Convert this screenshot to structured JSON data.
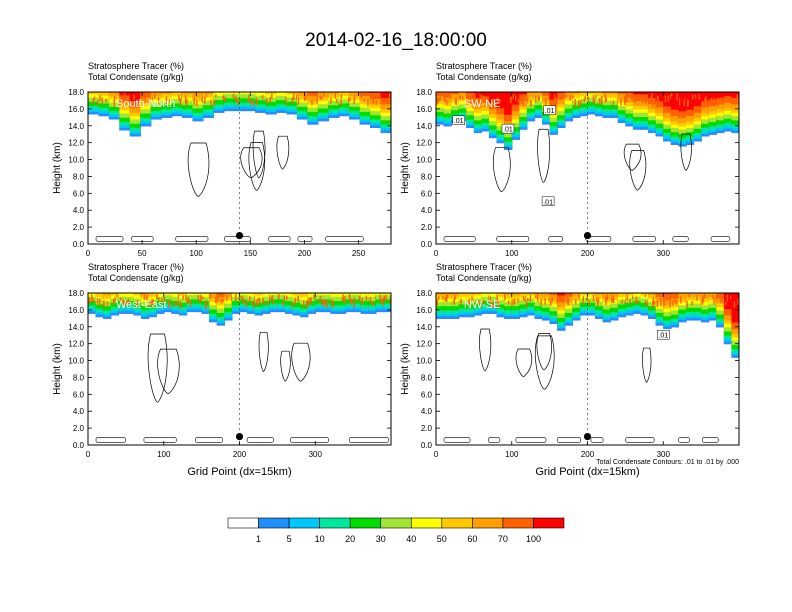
{
  "title": "2014-02-16_18:00:00",
  "panel_title_line1": "Stratosphere Tracer   (%)",
  "panel_title_line2": "Total Condensate   (g/kg)",
  "ylabel": "Height (km)",
  "xlabel": "Grid Point (dx=15km)",
  "contour_note": "Total Condensate Contours: .01 to .01 by .000",
  "contour_label": ".01",
  "colorbar": {
    "levels": [
      "1",
      "5",
      "10",
      "20",
      "30",
      "40",
      "50",
      "60",
      "70",
      "100"
    ],
    "colors": [
      "#ffffff",
      "#1e90ff",
      "#00c8ff",
      "#00e8a0",
      "#00dd00",
      "#a0e632",
      "#ffff00",
      "#ffc800",
      "#ffa000",
      "#ff6000",
      "#ff0000"
    ]
  },
  "chart_data": [
    {
      "type": "heatmap",
      "name": "South-North",
      "panel_label": "South-North",
      "xlim": [
        0,
        280
      ],
      "xticks": [
        "0",
        "50",
        "100",
        "150",
        "200",
        "250"
      ],
      "xtick_values": [
        0,
        50,
        100,
        150,
        200,
        250
      ],
      "ylim": [
        0,
        18
      ],
      "yticks": [
        "0.0",
        "2.0",
        "4.0",
        "6.0",
        "8.0",
        "10.0",
        "12.0",
        "14.0",
        "16.0",
        "18.0"
      ],
      "tracer_top_km": [
        15.4,
        15.2,
        14.8,
        13.5,
        12.8,
        14.0,
        14.8,
        15.0,
        15.2,
        15.0,
        14.6,
        15.0,
        15.6,
        15.8,
        15.8,
        15.8,
        15.6,
        15.4,
        15.6,
        15.4,
        14.8,
        14.2,
        14.6,
        15.0,
        15.2,
        14.8,
        14.2,
        13.8,
        13.2
      ],
      "marker_x": 140,
      "marker_km": 1.0,
      "show_xlabel": false,
      "show_note": false
    },
    {
      "type": "heatmap",
      "name": "SW-NE",
      "panel_label": "SW-NE",
      "xlim": [
        0,
        400
      ],
      "xticks": [
        "0",
        "100",
        "200",
        "300"
      ],
      "xtick_values": [
        0,
        100,
        200,
        300
      ],
      "ylim": [
        0,
        18
      ],
      "yticks": [
        "0.0",
        "2.0",
        "4.0",
        "6.0",
        "8.0",
        "10.0",
        "12.0",
        "14.0",
        "16.0",
        "18.0"
      ],
      "tracer_top_km": [
        14.2,
        14.0,
        14.4,
        14.6,
        13.8,
        13.2,
        13.4,
        12.6,
        12.0,
        11.2,
        12.4,
        13.6,
        14.6,
        15.0,
        14.2,
        13.0,
        13.8,
        14.6,
        15.0,
        15.2,
        15.4,
        15.2,
        15.0,
        15.0,
        14.4,
        14.0,
        13.6,
        13.6,
        13.2,
        12.8,
        12.2,
        11.8,
        11.6,
        11.8,
        12.2,
        12.8,
        13.0,
        13.2,
        13.4,
        13.2
      ],
      "marker_x": 200,
      "marker_km": 1.0,
      "show_xlabel": false,
      "show_note": false
    },
    {
      "type": "heatmap",
      "name": "West-East",
      "panel_label": "West-East",
      "xlim": [
        0,
        400
      ],
      "xticks": [
        "0",
        "100",
        "200",
        "300"
      ],
      "xtick_values": [
        0,
        100,
        200,
        300
      ],
      "ylim": [
        0,
        18
      ],
      "yticks": [
        "0.0",
        "2.0",
        "4.0",
        "6.0",
        "8.0",
        "10.0",
        "12.0",
        "14.0",
        "16.0",
        "18.0"
      ],
      "tracer_top_km": [
        15.6,
        15.2,
        15.0,
        15.4,
        15.6,
        15.6,
        15.4,
        15.0,
        15.2,
        15.6,
        15.8,
        15.6,
        15.4,
        15.8,
        15.8,
        15.6,
        14.6,
        14.2,
        14.8,
        15.6,
        15.8,
        15.6,
        15.4,
        15.6,
        15.8,
        15.8,
        15.6,
        15.4,
        15.2,
        15.6,
        15.8,
        15.8,
        15.6,
        15.6,
        15.8,
        15.8,
        15.6,
        15.6,
        15.8,
        15.8
      ],
      "marker_x": 200,
      "marker_km": 1.0,
      "show_xlabel": true,
      "show_note": false
    },
    {
      "type": "heatmap",
      "name": "NW-SE",
      "panel_label": "NW-SE",
      "xlim": [
        0,
        400
      ],
      "xticks": [
        "0",
        "100",
        "200",
        "300"
      ],
      "xtick_values": [
        0,
        100,
        200,
        300
      ],
      "ylim": [
        0,
        18
      ],
      "yticks": [
        "0.0",
        "2.0",
        "4.0",
        "6.0",
        "8.0",
        "10.0",
        "12.0",
        "14.0",
        "16.0",
        "18.0"
      ],
      "tracer_top_km": [
        15.0,
        15.0,
        15.0,
        15.2,
        15.2,
        15.4,
        15.6,
        15.6,
        15.2,
        15.0,
        15.0,
        15.2,
        15.4,
        15.0,
        14.8,
        14.4,
        13.6,
        14.2,
        14.8,
        15.4,
        15.4,
        15.0,
        14.6,
        14.8,
        15.2,
        15.4,
        15.6,
        15.4,
        15.0,
        14.2,
        13.8,
        14.0,
        14.6,
        14.8,
        14.8,
        14.6,
        14.8,
        14.0,
        12.0,
        10.4
      ],
      "marker_x": 200,
      "marker_km": 1.0,
      "show_xlabel": true,
      "show_note": true
    }
  ]
}
